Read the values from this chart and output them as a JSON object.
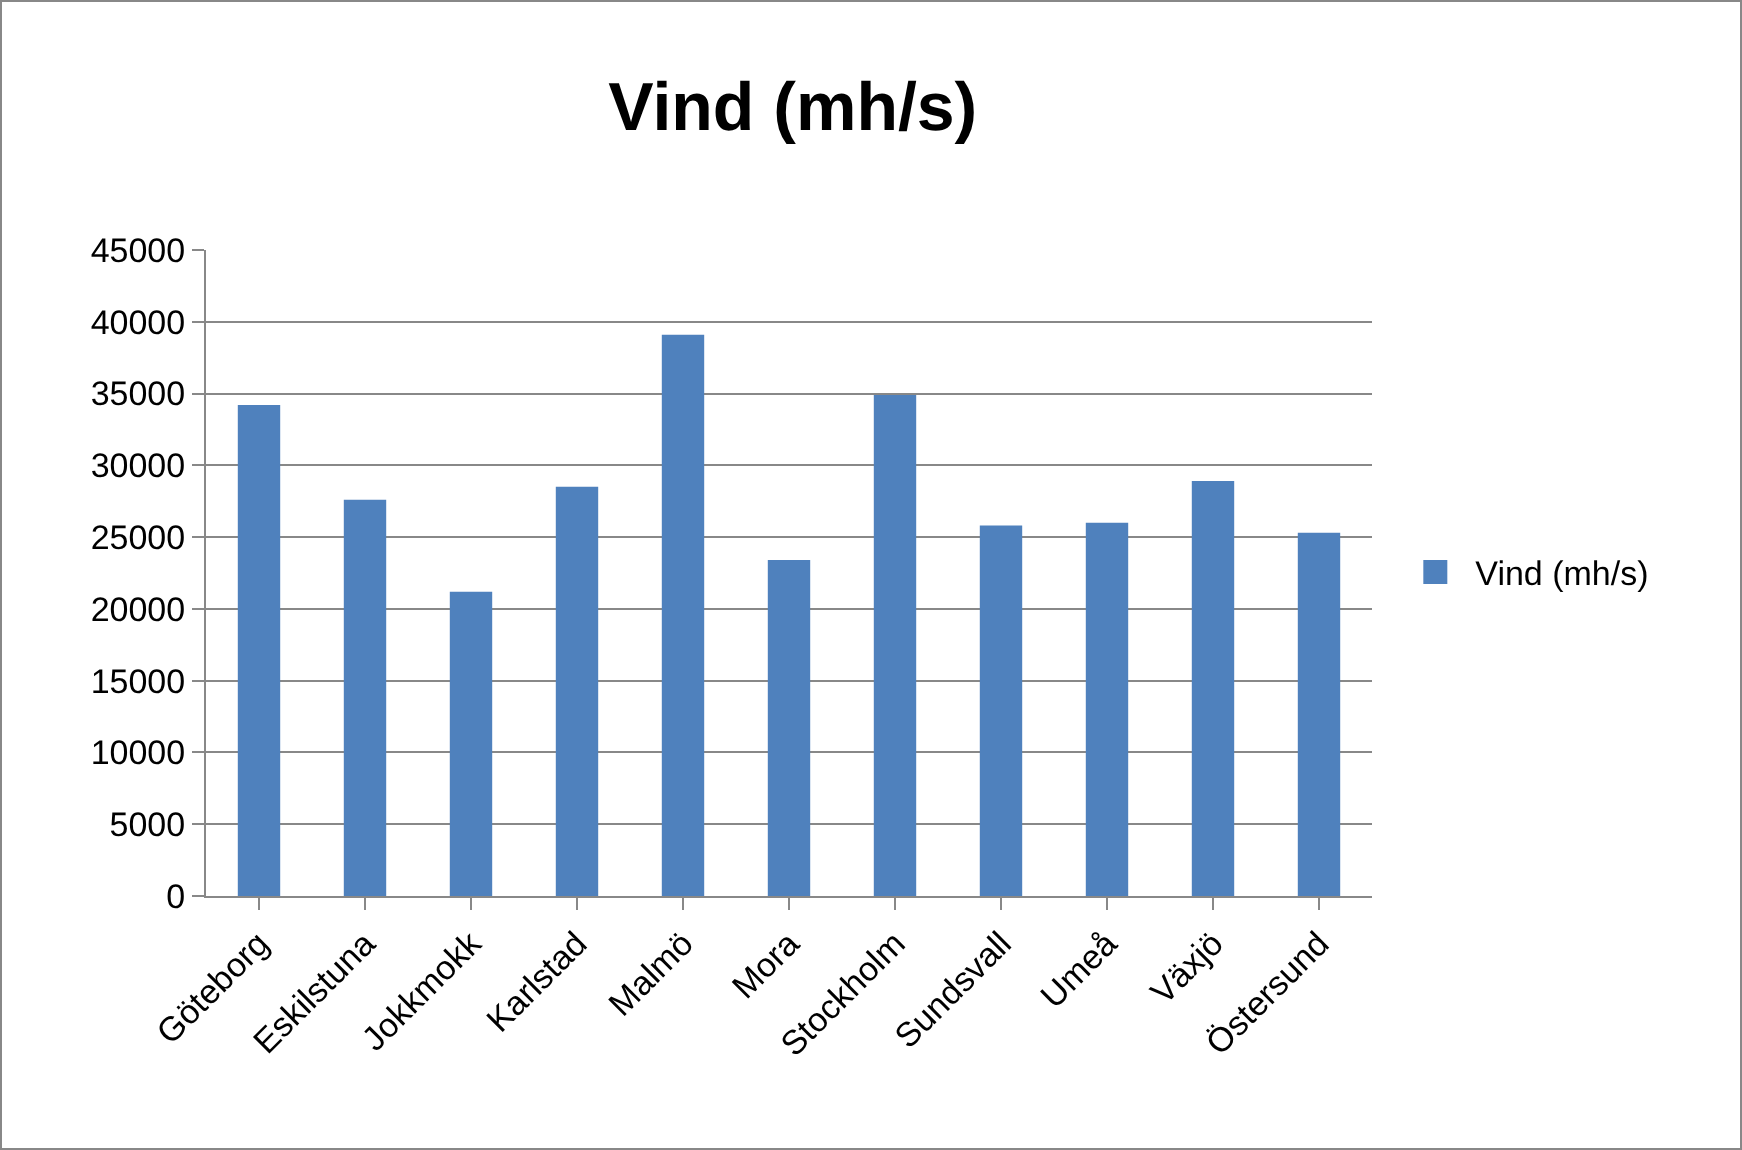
{
  "chart_data": {
    "type": "bar",
    "title": "Vind (mh/s)",
    "categories": [
      "Göteborg",
      "Eskilstuna",
      "Jokkmokk",
      "Karlstad",
      "Malmö",
      "Mora",
      "Stockholm",
      "Sundsvall",
      "Umeå",
      "Växjö",
      "Östersund"
    ],
    "series": [
      {
        "name": "Vind (mh/s)",
        "color": "#4f81bd",
        "values": [
          34200,
          27600,
          21200,
          28500,
          39100,
          23400,
          34900,
          25800,
          26000,
          28900,
          25300
        ]
      }
    ],
    "ylim": [
      0,
      45000
    ],
    "yticks": [
      0,
      5000,
      10000,
      15000,
      20000,
      25000,
      30000,
      35000,
      40000,
      45000
    ],
    "grid": "y",
    "legend": "right"
  }
}
